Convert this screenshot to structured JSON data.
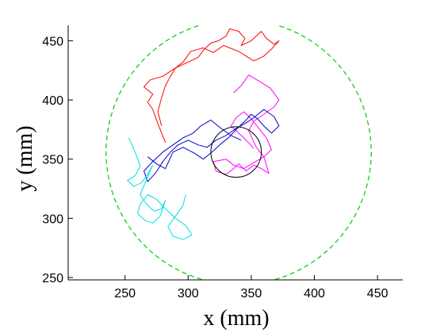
{
  "chart_data": {
    "type": "line",
    "title": "",
    "xlabel": "x (mm)",
    "ylabel": "y (mm)",
    "xlim": [
      205,
      470
    ],
    "ylim": [
      248,
      463
    ],
    "xticks": [
      250,
      300,
      350,
      400,
      450
    ],
    "yticks": [
      250,
      300,
      350,
      400,
      450
    ],
    "grid": false,
    "boundary_circle": {
      "cx": 340,
      "cy": 356,
      "r": 105,
      "color": "#00cc00",
      "style": "dashed"
    },
    "target_circle": {
      "cx": 338,
      "cy": 356,
      "r": 20,
      "color": "#000000",
      "style": "solid"
    },
    "series": [
      {
        "color": "#ff0000",
        "x": [
          282,
          276,
          272,
          268,
          272,
          265,
          270,
          280,
          290,
          300,
          308,
          312,
          318,
          324,
          330,
          333,
          340,
          345,
          342,
          350,
          355,
          358,
          362,
          368,
          372,
          366,
          360,
          352,
          340,
          328,
          320,
          312,
          302,
          296,
          290,
          286,
          282,
          279,
          276,
          279
        ],
        "y": [
          364,
          380,
          392,
          398,
          405,
          411,
          417,
          420,
          427,
          432,
          436,
          442,
          448,
          450,
          454,
          460,
          458,
          452,
          446,
          450,
          455,
          458,
          452,
          447,
          450,
          443,
          437,
          433,
          441,
          446,
          440,
          444,
          441,
          432,
          427,
          420,
          412,
          402,
          390,
          378
        ]
      },
      {
        "color": "#ff00ff",
        "x": [
          352,
          346,
          340,
          334,
          338,
          344,
          350,
          356,
          362,
          366,
          360,
          352,
          344,
          336,
          330,
          320,
          322,
          330,
          336,
          340,
          346,
          352,
          358,
          364,
          360,
          354,
          348,
          352,
          360,
          368,
          372,
          365,
          356,
          348,
          342,
          336
        ],
        "y": [
          359,
          366,
          372,
          378,
          385,
          390,
          384,
          376,
          368,
          358,
          352,
          347,
          342,
          345,
          350,
          348,
          340,
          337,
          342,
          346,
          340,
          345,
          342,
          338,
          352,
          360,
          374,
          382,
          388,
          394,
          400,
          410,
          416,
          421,
          412,
          406
        ]
      },
      {
        "color": "#0000cc",
        "x": [
          268,
          275,
          282,
          288,
          296,
          305,
          312,
          320,
          326,
          332,
          338,
          345,
          350,
          355,
          360,
          366,
          372,
          368,
          360,
          352,
          345,
          338,
          330,
          322,
          315,
          308,
          300,
          292,
          286,
          280,
          274,
          268,
          265,
          272,
          280,
          288,
          296,
          304,
          310,
          318,
          326,
          334,
          342
        ],
        "y": [
          352,
          346,
          342,
          356,
          360,
          355,
          350,
          357,
          363,
          368,
          375,
          382,
          388,
          384,
          378,
          372,
          378,
          386,
          392,
          385,
          380,
          376,
          370,
          366,
          360,
          362,
          366,
          362,
          356,
          348,
          338,
          331,
          340,
          348,
          356,
          362,
          368,
          372,
          378,
          383,
          376,
          370,
          366
        ]
      },
      {
        "color": "#00e0e0",
        "x": [
          253,
          258,
          262,
          258,
          252,
          257,
          263,
          268,
          272,
          268,
          262,
          267,
          273,
          279,
          282,
          278,
          272,
          266,
          260,
          262,
          268,
          275,
          282,
          290,
          298,
          303,
          296,
          288,
          284,
          290,
          296,
          298
        ],
        "y": [
          368,
          356,
          344,
          336,
          332,
          327,
          330,
          337,
          345,
          335,
          320,
          312,
          306,
          308,
          315,
          302,
          296,
          298,
          304,
          312,
          320,
          316,
          308,
          300,
          294,
          286,
          282,
          285,
          293,
          302,
          311,
          320
        ]
      }
    ]
  }
}
